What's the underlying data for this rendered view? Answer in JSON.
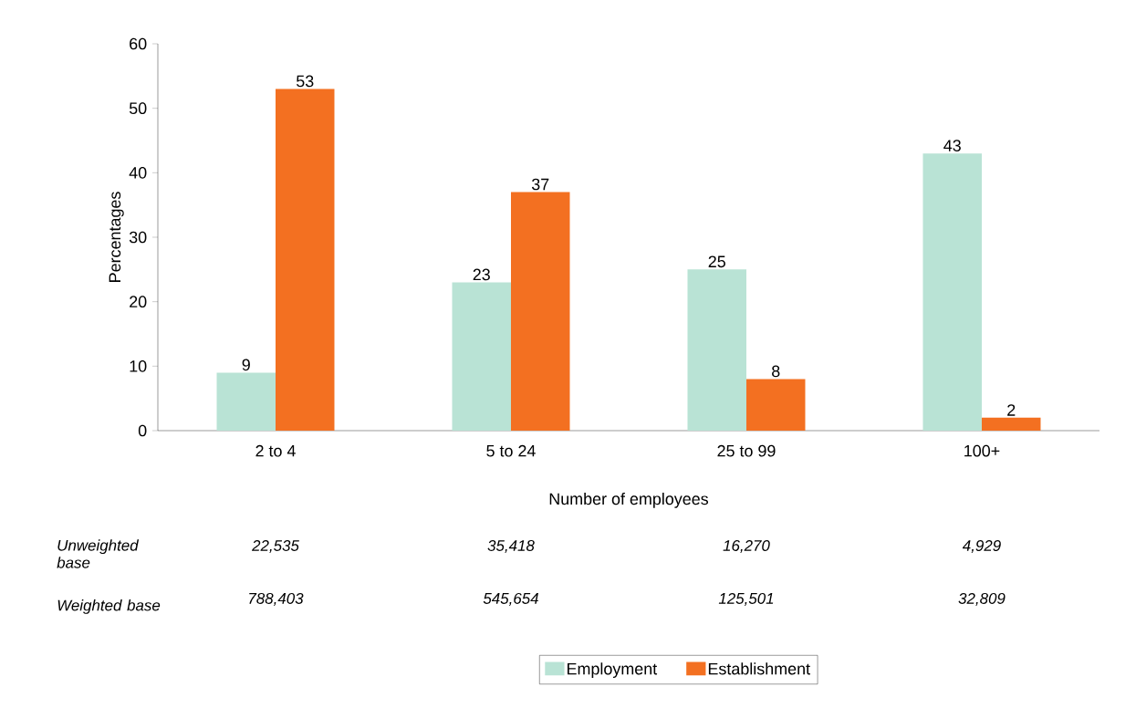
{
  "chart_data": {
    "type": "bar",
    "xlabel": "Number of employees",
    "ylabel": "Percentages",
    "categories": [
      "2 to 4",
      "5 to 24",
      "25 to 99",
      "100+"
    ],
    "series": [
      {
        "name": "Employment",
        "color": "#b9e3d5",
        "values": [
          9,
          23,
          25,
          43
        ]
      },
      {
        "name": "Establishment",
        "color": "#f37021",
        "values": [
          53,
          37,
          8,
          2
        ]
      }
    ],
    "ylim": [
      0,
      60
    ],
    "yticks": [
      0,
      10,
      20,
      30,
      40,
      50,
      60
    ],
    "data_labels": true,
    "legend": "bottom",
    "grid": false,
    "annotations": [
      "Unweighted base",
      "22,535",
      "35,418",
      "16,270",
      "4,929",
      "Weighted base",
      "788,403",
      "545,654",
      "125,501",
      "32,809"
    ]
  }
}
